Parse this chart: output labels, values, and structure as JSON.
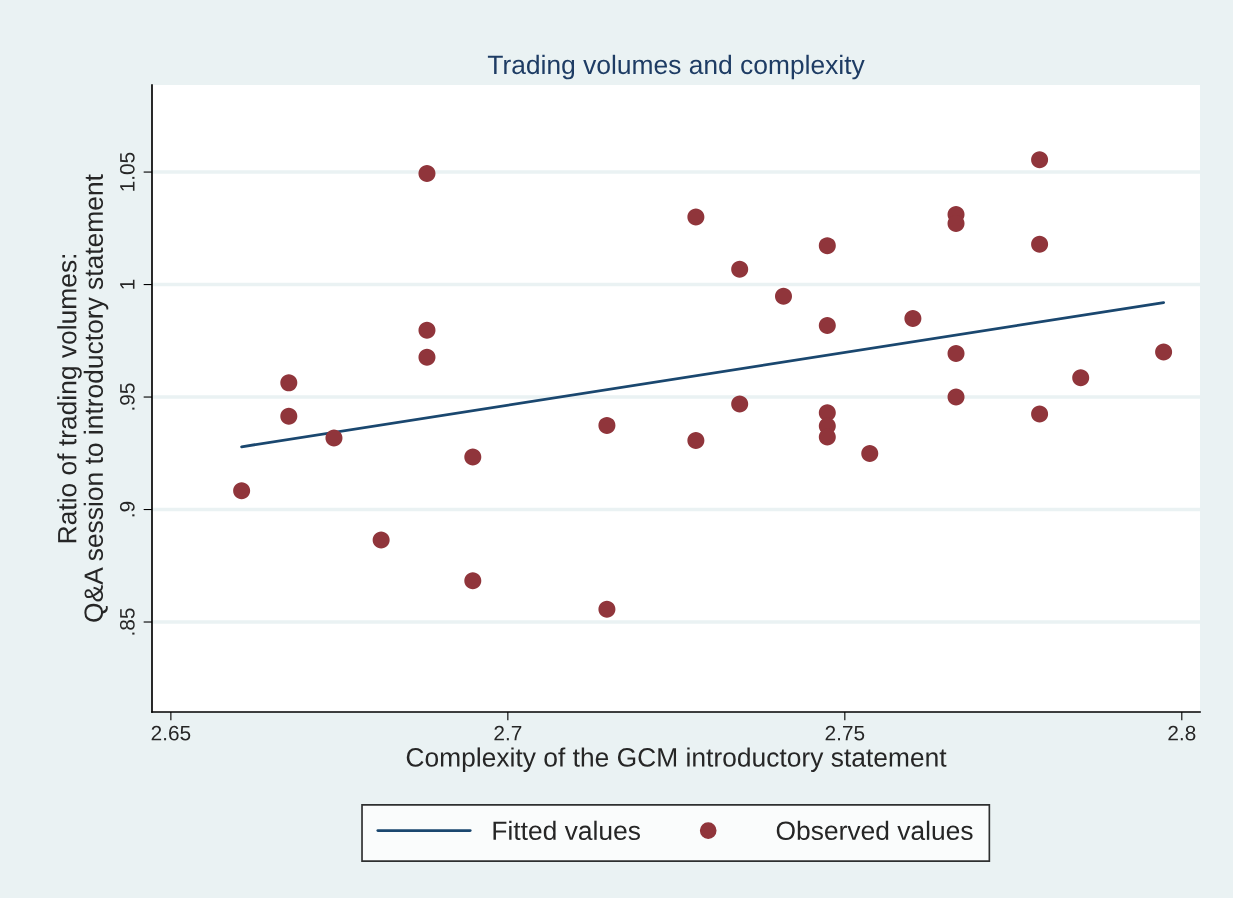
{
  "chart_data": {
    "type": "scatter",
    "title": "Trading volumes and complexity",
    "xlabel": "Complexity of the GCM introductory statement",
    "ylabel": "Ratio of trading volumes:\nQ&A session to introductory statement",
    "xlim": [
      2.6472,
      2.8027
    ],
    "ylim": [
      0.81,
      1.0887
    ],
    "xticks": [
      2.65,
      2.7,
      2.75,
      2.8
    ],
    "yticks": [
      {
        "value": 0.85,
        "label": ".85"
      },
      {
        "value": 0.9,
        "label": ".9"
      },
      {
        "value": 0.95,
        "label": ".95"
      },
      {
        "value": 1,
        "label": "1"
      },
      {
        "value": 1.05,
        "label": "1.05"
      }
    ],
    "grid": "y",
    "legend": "bottom",
    "series": [
      {
        "name": "Fitted values",
        "type": "line",
        "color": "#1a476f",
        "marker": "none",
        "x": [
          2.6605,
          2.7973
        ],
        "values": [
          0.9279,
          0.992
        ]
      },
      {
        "name": "Observed values",
        "color": "#90353b",
        "marker": "circle",
        "x": [
          2.6605,
          2.6675,
          2.6675,
          2.6742,
          2.6812,
          2.688,
          2.688,
          2.688,
          2.6948,
          2.6948,
          2.7147,
          2.7147,
          2.7279,
          2.7279,
          2.7344,
          2.7344,
          2.7409,
          2.7474,
          2.7474,
          2.7474,
          2.7474,
          2.7474,
          2.7537,
          2.7601,
          2.7665,
          2.7665,
          2.7665,
          2.7665,
          2.7789,
          2.7789,
          2.7789,
          2.785,
          2.7973
        ],
        "values": [
          0.9083,
          0.9563,
          0.9415,
          0.9318,
          0.8865,
          1.0494,
          0.9797,
          0.9677,
          0.9233,
          0.8683,
          0.9374,
          0.8557,
          1.03,
          0.9307,
          1.0068,
          0.9469,
          0.9948,
          1.0173,
          0.9818,
          0.943,
          0.9371,
          0.9322,
          0.9249,
          0.9849,
          1.0311,
          1.0271,
          0.9694,
          0.95,
          1.0555,
          1.0179,
          0.9425,
          0.9586,
          0.97
        ]
      }
    ]
  }
}
